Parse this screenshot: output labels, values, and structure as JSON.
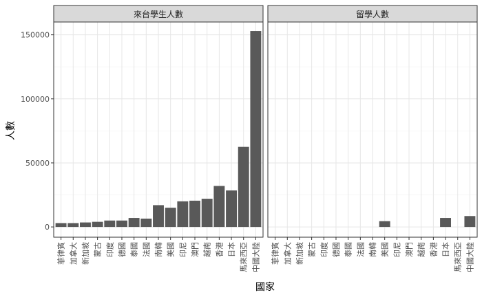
{
  "chart_data": {
    "type": "bar",
    "xlabel": "國家",
    "ylabel": "人數",
    "ylim": [
      0,
      160000
    ],
    "yticks": [
      0,
      50000,
      100000,
      150000
    ],
    "ytick_labels": [
      "0",
      "50000",
      "100000",
      "150000"
    ],
    "grid": true,
    "bar_color": "#595959",
    "panels": [
      {
        "title": "來台學生人數",
        "categories": [
          "菲律賓",
          "加拿大",
          "新加坡",
          "蒙古",
          "印度",
          "德國",
          "泰國",
          "法國",
          "南韓",
          "美國",
          "印尼",
          "澳門",
          "越南",
          "香港",
          "日本",
          "馬來西亞",
          "中國大陸"
        ],
        "values": [
          3000,
          3000,
          3500,
          4000,
          5000,
          5000,
          7000,
          6500,
          17000,
          15000,
          20000,
          20500,
          22000,
          32000,
          28500,
          62500,
          153000
        ]
      },
      {
        "title": "留學人數",
        "categories": [
          "菲律賓",
          "加拿大",
          "新加坡",
          "蒙古",
          "印度",
          "德國",
          "泰國",
          "法國",
          "南韓",
          "美國",
          "印尼",
          "澳門",
          "越南",
          "香港",
          "日本",
          "馬來西亞",
          "中國大陸"
        ],
        "values": [
          0,
          0,
          0,
          0,
          0,
          0,
          0,
          0,
          0,
          4500,
          0,
          0,
          0,
          0,
          7000,
          0,
          8500
        ]
      }
    ]
  }
}
